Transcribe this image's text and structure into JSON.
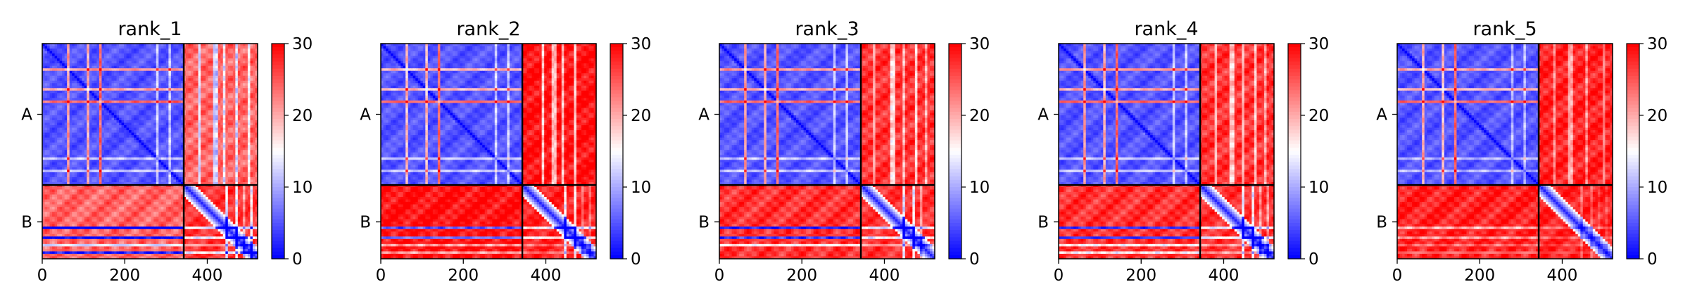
{
  "chart_data": [
    {
      "type": "heatmap",
      "title": "rank_1",
      "x_ticks": [
        0,
        200,
        400
      ],
      "y_ticks": [
        "A",
        "B"
      ],
      "chains": [
        {
          "name": "A",
          "start": 0,
          "end": 343
        },
        {
          "name": "B",
          "start": 343,
          "end": 522
        }
      ],
      "xlim": [
        0,
        522
      ],
      "colorbar": {
        "min": 0,
        "max": 30,
        "ticks": [
          0,
          10,
          20,
          30
        ],
        "colormap": "bwr"
      },
      "block_mean_values": {
        "A-A": 5,
        "A-B": 24,
        "B-A": 24,
        "B-B": 27
      },
      "band_emphasis": {
        "A": [
          [
            62,
            0.8
          ],
          [
            113,
            0.75
          ],
          [
            141,
            0.95
          ],
          [
            246,
            0.4
          ],
          [
            278,
            0.35
          ],
          [
            308,
            0.35
          ]
        ],
        "B": [
          [
            432,
            0.35
          ],
          [
            445,
            0.9
          ],
          [
            470,
            0.85
          ],
          [
            490,
            0.4
          ],
          [
            505,
            0.8
          ]
        ]
      },
      "cross_stripes": [
        [
          380,
          0.5
        ],
        [
          420,
          0.55
        ],
        [
          440,
          0.45
        ],
        [
          470,
          0.5
        ],
        [
          500,
          0.4
        ]
      ]
    },
    {
      "type": "heatmap",
      "title": "rank_2",
      "x_ticks": [
        0,
        200,
        400
      ],
      "y_ticks": [
        "A",
        "B"
      ],
      "chains": [
        {
          "name": "A",
          "start": 0,
          "end": 343
        },
        {
          "name": "B",
          "start": 343,
          "end": 522
        }
      ],
      "xlim": [
        0,
        522
      ],
      "colorbar": {
        "min": 0,
        "max": 30,
        "ticks": [
          0,
          10,
          20,
          30
        ],
        "colormap": "bwr"
      },
      "block_mean_values": {
        "A-A": 5,
        "A-B": 29,
        "B-A": 29,
        "B-B": 28
      },
      "band_emphasis": {
        "A": [
          [
            62,
            0.7
          ],
          [
            113,
            0.7
          ],
          [
            141,
            0.95
          ],
          [
            246,
            0.4
          ],
          [
            278,
            0.35
          ],
          [
            308,
            0.35
          ]
        ],
        "B": [
          [
            432,
            0.2
          ],
          [
            445,
            0.85
          ],
          [
            470,
            0.8
          ],
          [
            490,
            0.3
          ],
          [
            505,
            0.3
          ]
        ]
      },
      "cross_stripes": [
        [
          395,
          0.5
        ],
        [
          420,
          0.45
        ],
        [
          440,
          0.45
        ],
        [
          470,
          0.5
        ]
      ]
    },
    {
      "type": "heatmap",
      "title": "rank_3",
      "x_ticks": [
        0,
        200,
        400
      ],
      "y_ticks": [
        "A",
        "B"
      ],
      "chains": [
        {
          "name": "A",
          "start": 0,
          "end": 343
        },
        {
          "name": "B",
          "start": 343,
          "end": 522
        }
      ],
      "xlim": [
        0,
        522
      ],
      "colorbar": {
        "min": 0,
        "max": 30,
        "ticks": [
          0,
          10,
          20,
          30
        ],
        "colormap": "bwr"
      },
      "block_mean_values": {
        "A-A": 5,
        "A-B": 27,
        "B-A": 27,
        "B-B": 27
      },
      "band_emphasis": {
        "A": [
          [
            62,
            0.8
          ],
          [
            113,
            0.75
          ],
          [
            141,
            0.95
          ],
          [
            246,
            0.4
          ],
          [
            278,
            0.35
          ],
          [
            308,
            0.35
          ]
        ],
        "B": [
          [
            432,
            0.3
          ],
          [
            445,
            0.9
          ],
          [
            470,
            0.85
          ],
          [
            490,
            0.4
          ],
          [
            510,
            0.85
          ]
        ]
      },
      "cross_stripes": [
        [
          375,
          0.3
        ],
        [
          420,
          0.45
        ],
        [
          445,
          0.35
        ],
        [
          475,
          0.45
        ],
        [
          500,
          0.3
        ]
      ]
    },
    {
      "type": "heatmap",
      "title": "rank_4",
      "x_ticks": [
        0,
        200,
        400
      ],
      "y_ticks": [
        "A",
        "B"
      ],
      "chains": [
        {
          "name": "A",
          "start": 0,
          "end": 343
        },
        {
          "name": "B",
          "start": 343,
          "end": 522
        }
      ],
      "xlim": [
        0,
        522
      ],
      "colorbar": {
        "min": 0,
        "max": 30,
        "ticks": [
          0,
          10,
          20,
          30
        ],
        "colormap": "bwr"
      },
      "block_mean_values": {
        "A-A": 5,
        "A-B": 27,
        "B-A": 27,
        "B-B": 27
      },
      "band_emphasis": {
        "A": [
          [
            62,
            0.8
          ],
          [
            113,
            0.75
          ],
          [
            141,
            0.95
          ],
          [
            246,
            0.4
          ],
          [
            278,
            0.35
          ],
          [
            308,
            0.35
          ]
        ],
        "B": [
          [
            432,
            0.3
          ],
          [
            445,
            0.85
          ],
          [
            470,
            0.85
          ],
          [
            490,
            0.4
          ],
          [
            505,
            0.4
          ]
        ]
      },
      "cross_stripes": [
        [
          380,
          0.35
        ],
        [
          420,
          0.4
        ],
        [
          445,
          0.35
        ],
        [
          475,
          0.4
        ],
        [
          500,
          0.3
        ]
      ]
    },
    {
      "type": "heatmap",
      "title": "rank_5",
      "x_ticks": [
        0,
        200,
        400
      ],
      "y_ticks": [
        "A",
        "B"
      ],
      "chains": [
        {
          "name": "A",
          "start": 0,
          "end": 343
        },
        {
          "name": "B",
          "start": 343,
          "end": 522
        }
      ],
      "xlim": [
        0,
        522
      ],
      "colorbar": {
        "min": 0,
        "max": 30,
        "ticks": [
          0,
          10,
          20,
          30
        ],
        "colormap": "bwr"
      },
      "block_mean_values": {
        "A-A": 5,
        "A-B": 28,
        "B-A": 28,
        "B-B": 28
      },
      "band_emphasis": {
        "A": [
          [
            62,
            0.75
          ],
          [
            113,
            0.7
          ],
          [
            141,
            0.95
          ],
          [
            246,
            0.35
          ],
          [
            278,
            0.3
          ],
          [
            308,
            0.3
          ]
        ],
        "B": [
          [
            432,
            0.15
          ],
          [
            445,
            0.3
          ],
          [
            470,
            0.25
          ],
          [
            490,
            0.15
          ],
          [
            505,
            0.15
          ]
        ]
      },
      "cross_stripes": [
        [
          380,
          0.3
        ],
        [
          420,
          0.35
        ],
        [
          460,
          0.3
        ],
        [
          500,
          0.25
        ]
      ]
    }
  ],
  "style": {
    "colormap_low": "#0000ff",
    "colormap_mid": "#ffffff",
    "colormap_high": "#ff0000",
    "divider_color": "#000000"
  }
}
